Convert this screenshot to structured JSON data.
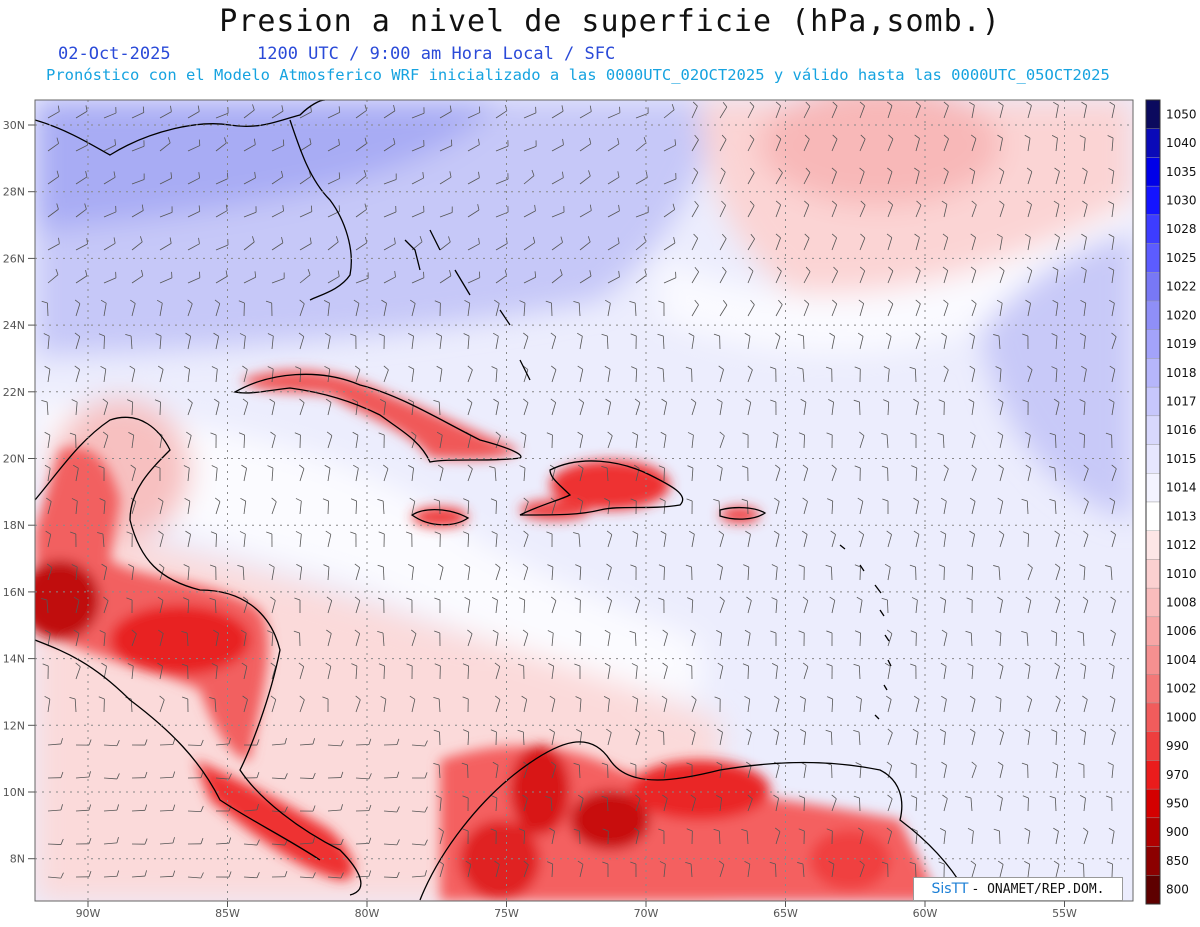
{
  "title": "Presion a nivel de superficie (hPa,somb.)",
  "date": "02-Oct-2025",
  "time_label": "1200 UTC / 9:00 am Hora Local / SFC",
  "forecast_info": "Pronóstico con el Modelo Atmosferico WRF inicializado a las 0000UTC_02OCT2025 y válido hasta las  0000UTC_05OCT2025",
  "credit": {
    "brand": "SisTT",
    "text": " - ONAMET/REP.DOM."
  },
  "axes": {
    "lat_labels": [
      "30N",
      "28N",
      "26N",
      "24N",
      "22N",
      "20N",
      "18N",
      "16N",
      "14N",
      "12N",
      "10N",
      "8N"
    ],
    "lon_labels": [
      "90W",
      "85W",
      "80W",
      "75W",
      "70W",
      "65W",
      "60W",
      "55W"
    ]
  },
  "colorbar": {
    "levels": [
      "1050",
      "1040",
      "1035",
      "1030",
      "1028",
      "1025",
      "1022",
      "1020",
      "1019",
      "1018",
      "1017",
      "1016",
      "1015",
      "1014",
      "1013",
      "1012",
      "1010",
      "1008",
      "1006",
      "1004",
      "1002",
      "1000",
      "990",
      "970",
      "950",
      "900",
      "850",
      "800"
    ],
    "colors": [
      "#0b0a5e",
      "#0a0ab8",
      "#0000e8",
      "#1414ff",
      "#3d3dff",
      "#5c5cff",
      "#7878f5",
      "#8f8ff7",
      "#a3a3fa",
      "#b6b6fb",
      "#c7c7fc",
      "#d8d8fd",
      "#e6e6fe",
      "#f3f3ff",
      "#ffffff",
      "#fde6e6",
      "#fbd0d0",
      "#f9bcbc",
      "#f7a6a6",
      "#f59090",
      "#f37878",
      "#f15c5c",
      "#ee3e3e",
      "#ea1c1c",
      "#d40000",
      "#b00000",
      "#8c0000",
      "#5e0000"
    ]
  }
}
